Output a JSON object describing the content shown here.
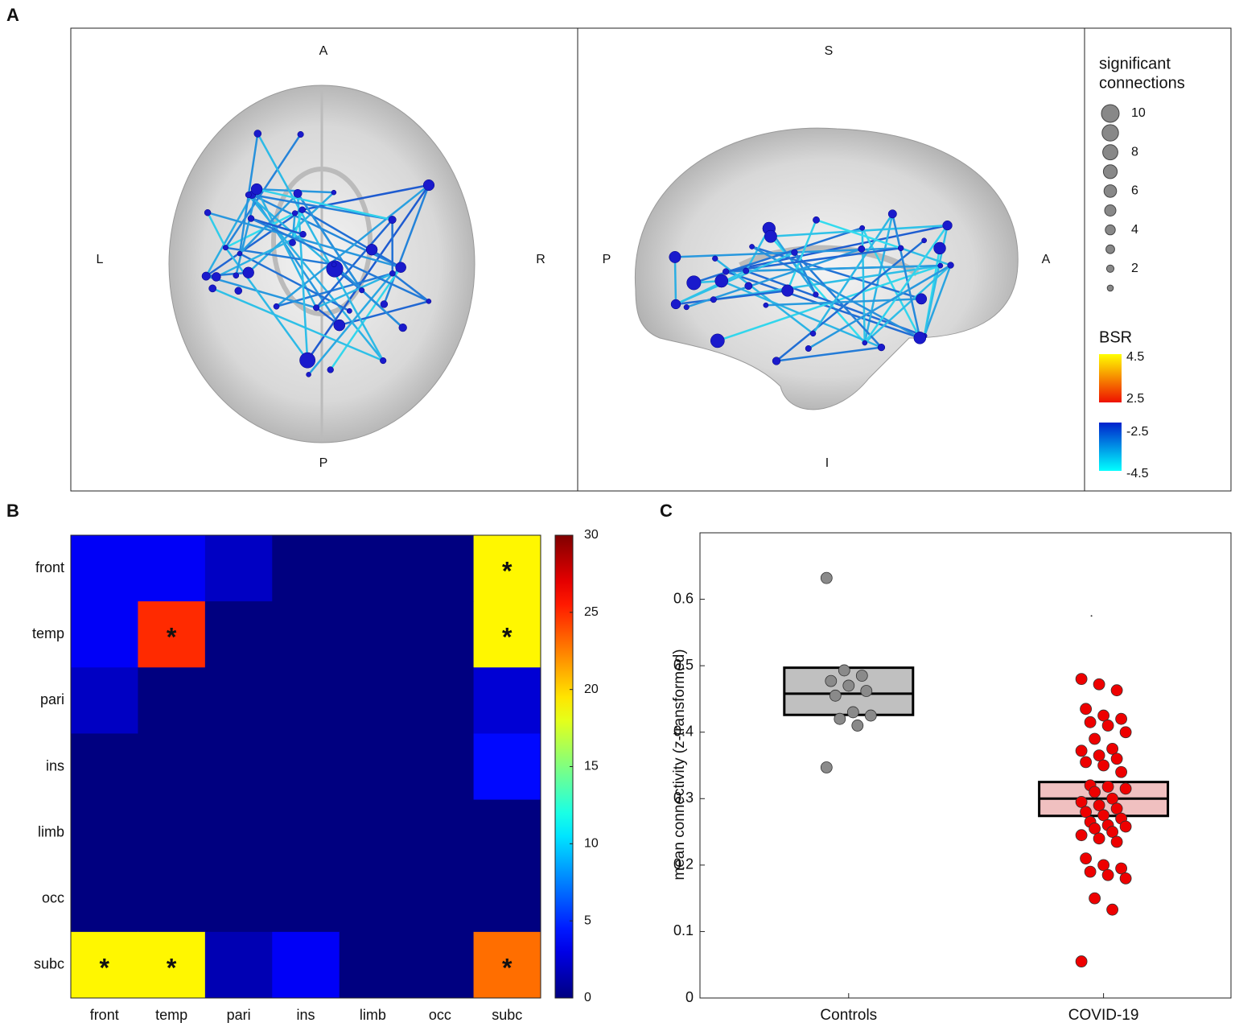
{
  "chart_data": [
    {
      "type": "network",
      "panel_label": "A",
      "axial_labels": {
        "top": "A",
        "bottom": "P",
        "left": "L",
        "right": "R"
      },
      "sagittal_labels": {
        "top": "S",
        "bottom": "I",
        "left": "P",
        "right": "A"
      },
      "size_legend": {
        "title_lines": [
          "significant",
          "connections"
        ],
        "values": [
          10,
          9,
          8,
          7,
          6,
          5,
          4,
          3,
          2,
          1
        ],
        "ticks": [
          10,
          8,
          6,
          4,
          2
        ]
      },
      "color_legend": {
        "title": "BSR",
        "positive_range": [
          2.5,
          4.5
        ],
        "negative_range": [
          -4.5,
          -2.5
        ],
        "ticks": [
          4.5,
          2.5,
          -2.5,
          -4.5
        ],
        "positive_colors": [
          "#ee1100",
          "#ffff00"
        ],
        "negative_colors": [
          "#00ffff",
          "#0022cc"
        ]
      }
    },
    {
      "type": "heatmap",
      "panel_label": "B",
      "rows": [
        "front",
        "temp",
        "pari",
        "ins",
        "limb",
        "occ",
        "subc"
      ],
      "columns": [
        "front",
        "temp",
        "pari",
        "ins",
        "limb",
        "occ",
        "subc"
      ],
      "values": [
        [
          3.5,
          3.5,
          2,
          0,
          0,
          0,
          19
        ],
        [
          3.5,
          25,
          0,
          0,
          0,
          0,
          19
        ],
        [
          2,
          0,
          0,
          0,
          0,
          0,
          2.5
        ],
        [
          0,
          0,
          0,
          0,
          0,
          0,
          4
        ],
        [
          0,
          0,
          0,
          0,
          0,
          0,
          0
        ],
        [
          0,
          0,
          0,
          0,
          0,
          0,
          0
        ],
        [
          19,
          19,
          1.5,
          3.5,
          0,
          0,
          23
        ]
      ],
      "significance": [
        [
          null,
          null,
          null,
          null,
          null,
          null,
          "*"
        ],
        [
          null,
          "*",
          null,
          null,
          null,
          null,
          "*"
        ],
        [
          null,
          null,
          null,
          null,
          null,
          null,
          null
        ],
        [
          null,
          null,
          null,
          null,
          null,
          null,
          null
        ],
        [
          null,
          null,
          null,
          null,
          null,
          null,
          null
        ],
        [
          null,
          null,
          null,
          null,
          null,
          null,
          null
        ],
        [
          "*",
          "*",
          null,
          null,
          null,
          null,
          "*"
        ]
      ],
      "colormap": "jet",
      "clim": [
        0,
        30
      ],
      "cticks": [
        0,
        5,
        10,
        15,
        20,
        25,
        30
      ]
    },
    {
      "type": "box",
      "panel_label": "C",
      "ylabel": "mean connectivity (z-transformed)",
      "categories": [
        "Controls",
        "COVID-19"
      ],
      "ylim": [
        0,
        0.7
      ],
      "yticks": [
        0,
        0.1,
        0.2,
        0.3,
        0.4,
        0.5,
        0.6
      ],
      "groups": [
        {
          "q1": 0.426,
          "median": 0.458,
          "q3": 0.497,
          "box_color": "#c0c0c0",
          "point_color": "#8a8a8a",
          "points": [
            0.632,
            0.493,
            0.485,
            0.477,
            0.47,
            0.462,
            0.455,
            0.43,
            0.425,
            0.42,
            0.41,
            0.347
          ],
          "outliers": []
        },
        {
          "q1": 0.274,
          "median": 0.3,
          "q3": 0.325,
          "box_color": "#f0c0c0",
          "point_color": "#ee0000",
          "points": [
            0.48,
            0.472,
            0.463,
            0.435,
            0.425,
            0.42,
            0.415,
            0.41,
            0.4,
            0.39,
            0.375,
            0.372,
            0.365,
            0.36,
            0.355,
            0.35,
            0.34,
            0.32,
            0.318,
            0.315,
            0.31,
            0.3,
            0.295,
            0.29,
            0.285,
            0.28,
            0.275,
            0.27,
            0.265,
            0.26,
            0.258,
            0.255,
            0.25,
            0.245,
            0.24,
            0.235,
            0.21,
            0.2,
            0.195,
            0.19,
            0.185,
            0.18,
            0.15,
            0.133,
            0.055
          ],
          "outliers": [
            0.575
          ]
        }
      ]
    }
  ]
}
